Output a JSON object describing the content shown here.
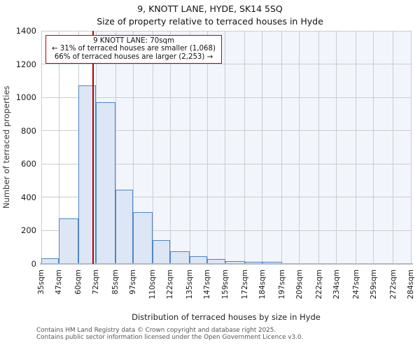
{
  "title": "9, KNOTT LANE, HYDE, SK14 5SQ",
  "subtitle": "Size of property relative to terraced houses in Hyde",
  "annotation": {
    "line1": "9 KNOTT LANE: 70sqm",
    "line2": "← 31% of terraced houses are smaller (1,068)",
    "line3": "66% of terraced houses are larger (2,253) →"
  },
  "footer": {
    "line1": "Contains HM Land Registry data © Crown copyright and database right 2025.",
    "line2": "Contains public sector information licensed under the Open Government Licence v3.0."
  },
  "chart_data": {
    "type": "bar",
    "title": "9, KNOTT LANE, HYDE, SK14 5SQ",
    "subtitle": "Size of property relative to terraced houses in Hyde",
    "xlabel": "Distribution of terraced houses by size in Hyde",
    "ylabel": "Number of terraced properties",
    "x_tick_labels": [
      "35sqm",
      "47sqm",
      "60sqm",
      "72sqm",
      "85sqm",
      "97sqm",
      "110sqm",
      "122sqm",
      "135sqm",
      "147sqm",
      "159sqm",
      "172sqm",
      "184sqm",
      "197sqm",
      "209sqm",
      "222sqm",
      "234sqm",
      "247sqm",
      "259sqm",
      "272sqm",
      "284sqm"
    ],
    "bin_edges_sqm": [
      35,
      47,
      60,
      72,
      85,
      97,
      110,
      122,
      135,
      147,
      159,
      172,
      184,
      197,
      209,
      222,
      234,
      247,
      259,
      272,
      284
    ],
    "values": [
      35,
      275,
      1070,
      970,
      445,
      310,
      145,
      75,
      45,
      28,
      15,
      12,
      12,
      0,
      0,
      0,
      0,
      0,
      0,
      0
    ],
    "ylim": [
      0,
      1400
    ],
    "y_ticks": [
      0,
      200,
      400,
      600,
      800,
      1000,
      1200,
      1400
    ],
    "x_range": [
      35,
      284
    ],
    "grid": true,
    "legend": "none",
    "marker_sqm": 70,
    "marker_label": "9 KNOTT LANE: 70sqm",
    "pct_smaller": "31%",
    "count_smaller": "1,068",
    "pct_larger": "66%",
    "count_larger": "2,253",
    "shade_from_sqm": 72,
    "colors": {
      "bar_fill": "#dce6f4",
      "bar_border": "#4f86c6",
      "marker": "#b00000",
      "annotation_border": "#c00000",
      "shade": "#f2f5fc",
      "grid": "#cccccc",
      "axis_line": "#b4b9c2"
    }
  }
}
